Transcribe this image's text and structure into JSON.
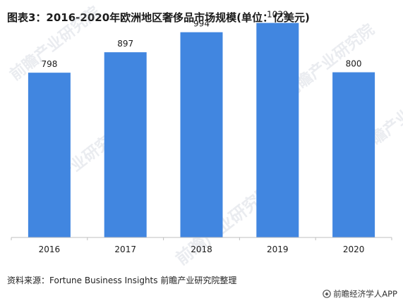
{
  "title": "图表3：2016-2020年欧洲地区奢侈品市场规模(单位：亿美元)",
  "source": "资料来源：Fortune Business Insights 前瞻产业研究院整理",
  "brand": {
    "app_name": "前瞻经济学人APP",
    "logo_icon": "qianzhan-logo-icon"
  },
  "watermark_text": "前瞻产业研究院",
  "colors": {
    "bar": "#4186e0",
    "axis": "#bfbfbf",
    "label": "#1a1a1a"
  },
  "chart_data": {
    "type": "bar",
    "categories": [
      "2016",
      "2017",
      "2018",
      "2019",
      "2020"
    ],
    "values": [
      798,
      897,
      994,
      1039,
      800
    ],
    "title": "图表3：2016-2020年欧洲地区奢侈品市场规模(单位：亿美元)",
    "xlabel": "",
    "ylabel": "",
    "ylim": [
      0,
      1150
    ],
    "grid": false,
    "legend": "none",
    "data_labels": true,
    "y_axis_visible": false
  }
}
